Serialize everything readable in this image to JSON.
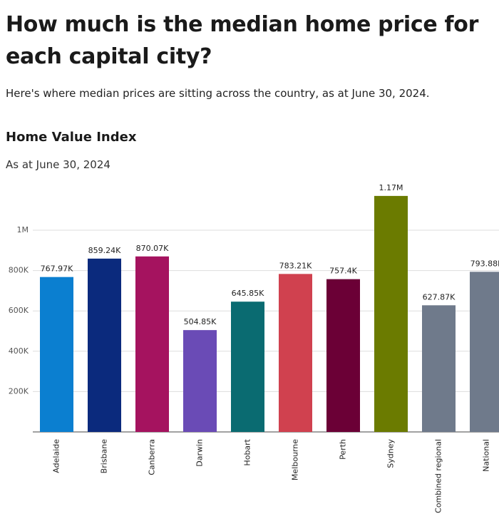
{
  "chart_data": {
    "type": "bar",
    "title": "How much is the median home price for each capital city?",
    "subtitle": "Here's where median prices are sitting across the country, as at June 30, 2024.",
    "chart_title": "Home Value Index",
    "chart_subtitle": "As at June 30, 2024",
    "categories": [
      "Adelaide",
      "Brisbane",
      "Canberra",
      "Darwin",
      "Hobart",
      "Melbourne",
      "Perth",
      "Sydney",
      "Combined regional",
      "National"
    ],
    "values": [
      767970,
      859240,
      870070,
      504850,
      645850,
      783210,
      757400,
      1170000,
      627870,
      793880
    ],
    "value_labels": [
      "767.97K",
      "859.24K",
      "870.07K",
      "504.85K",
      "645.85K",
      "783.21K",
      "757.4K",
      "1.17M",
      "627.87K",
      "793.88K"
    ],
    "colors": [
      "#0b7fd0",
      "#0b2a7d",
      "#a5135f",
      "#6a4bb6",
      "#0a6b71",
      "#d0414f",
      "#6b0036",
      "#6b7b00",
      "#6f7a8b",
      "#6f7a8b"
    ],
    "ylim": [
      0,
      1200000
    ],
    "yticks": [
      {
        "value": 200000,
        "label": "200K"
      },
      {
        "value": 400000,
        "label": "400K"
      },
      {
        "value": 600000,
        "label": "600K"
      },
      {
        "value": 800000,
        "label": "800K"
      },
      {
        "value": 1000000,
        "label": "1M"
      }
    ],
    "grid": true
  }
}
